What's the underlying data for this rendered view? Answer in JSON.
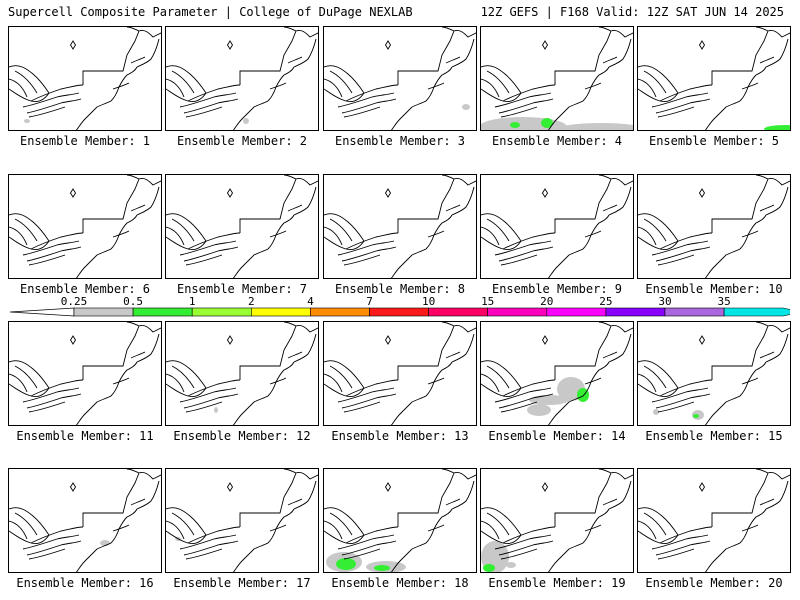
{
  "header": {
    "title_left": "Supercell Composite Parameter | College of DuPage NEXLAB",
    "title_right": "12Z GEFS | F168 Valid: 12Z SAT JUN 14 2025"
  },
  "legend": {
    "thresholds": [
      "0.25",
      "0.5",
      "1",
      "2",
      "4",
      "7",
      "10",
      "15",
      "20",
      "25",
      "30",
      "35"
    ],
    "colors": [
      "#c8c8c8",
      "#33ee33",
      "#99ff33",
      "#ffff00",
      "#ff8c00",
      "#ff1a1a",
      "#ff0066",
      "#ff00bb",
      "#ff00ff",
      "#8800ff",
      "#aa66dd",
      "#00e6e6"
    ]
  },
  "caption_prefix": "Ensemble Member: ",
  "members": [
    {
      "label": "Ensemble Member: 1",
      "blobs": [
        {
          "cx": 18,
          "cy": 94,
          "rx": 3,
          "ry": 2,
          "color": "gray"
        }
      ]
    },
    {
      "label": "Ensemble Member: 2",
      "blobs": [
        {
          "cx": 80,
          "cy": 94,
          "rx": 3,
          "ry": 3,
          "color": "gray"
        }
      ]
    },
    {
      "label": "Ensemble Member: 3",
      "blobs": [
        {
          "cx": 142,
          "cy": 80,
          "rx": 4,
          "ry": 3,
          "color": "gray"
        }
      ]
    },
    {
      "label": "Ensemble Member: 4",
      "blobs": [
        {
          "cx": 42,
          "cy": 100,
          "rx": 44,
          "ry": 10,
          "color": "gray"
        },
        {
          "cx": 120,
          "cy": 101,
          "rx": 40,
          "ry": 5,
          "color": "gray"
        },
        {
          "cx": 66,
          "cy": 96,
          "rx": 6,
          "ry": 5,
          "color": "green"
        },
        {
          "cx": 34,
          "cy": 98,
          "rx": 5,
          "ry": 3,
          "color": "green"
        }
      ]
    },
    {
      "label": "Ensemble Member: 5",
      "blobs": [
        {
          "cx": 148,
          "cy": 102,
          "rx": 22,
          "ry": 4,
          "color": "green"
        }
      ]
    },
    {
      "label": "Ensemble Member: 6",
      "blobs": []
    },
    {
      "label": "Ensemble Member: 7",
      "blobs": []
    },
    {
      "label": "Ensemble Member: 8",
      "blobs": []
    },
    {
      "label": "Ensemble Member: 9",
      "blobs": []
    },
    {
      "label": "Ensemble Member: 10",
      "blobs": []
    },
    {
      "label": "Ensemble Member: 11",
      "blobs": []
    },
    {
      "label": "Ensemble Member: 12",
      "blobs": [
        {
          "cx": 50,
          "cy": 88,
          "rx": 2,
          "ry": 3,
          "color": "gray"
        }
      ]
    },
    {
      "label": "Ensemble Member: 13",
      "blobs": []
    },
    {
      "label": "Ensemble Member: 14",
      "blobs": [
        {
          "cx": 90,
          "cy": 67,
          "rx": 14,
          "ry": 12,
          "color": "gray"
        },
        {
          "cx": 68,
          "cy": 78,
          "rx": 20,
          "ry": 5,
          "color": "gray"
        },
        {
          "cx": 58,
          "cy": 88,
          "rx": 12,
          "ry": 6,
          "color": "gray"
        },
        {
          "cx": 102,
          "cy": 73,
          "rx": 6,
          "ry": 7,
          "color": "green"
        }
      ]
    },
    {
      "label": "Ensemble Member: 15",
      "blobs": [
        {
          "cx": 60,
          "cy": 93,
          "rx": 6,
          "ry": 5,
          "color": "gray"
        },
        {
          "cx": 58,
          "cy": 94,
          "rx": 3,
          "ry": 2,
          "color": "green"
        },
        {
          "cx": 18,
          "cy": 90,
          "rx": 3,
          "ry": 3,
          "color": "gray"
        }
      ]
    },
    {
      "label": "Ensemble Member: 16",
      "blobs": [
        {
          "cx": 96,
          "cy": 74,
          "rx": 5,
          "ry": 3,
          "color": "gray"
        }
      ]
    },
    {
      "label": "Ensemble Member: 17",
      "blobs": [
        {
          "cx": 12,
          "cy": 70,
          "rx": 3,
          "ry": 2,
          "color": "gray"
        }
      ]
    },
    {
      "label": "Ensemble Member: 18",
      "blobs": [
        {
          "cx": 20,
          "cy": 93,
          "rx": 18,
          "ry": 10,
          "color": "gray"
        },
        {
          "cx": 62,
          "cy": 98,
          "rx": 20,
          "ry": 6,
          "color": "gray"
        },
        {
          "cx": 22,
          "cy": 95,
          "rx": 10,
          "ry": 6,
          "color": "green"
        },
        {
          "cx": 58,
          "cy": 99,
          "rx": 8,
          "ry": 3,
          "color": "green"
        }
      ]
    },
    {
      "label": "Ensemble Member: 19",
      "blobs": [
        {
          "cx": 14,
          "cy": 88,
          "rx": 14,
          "ry": 16,
          "color": "gray"
        },
        {
          "cx": 8,
          "cy": 99,
          "rx": 6,
          "ry": 4,
          "color": "green"
        },
        {
          "cx": 30,
          "cy": 96,
          "rx": 5,
          "ry": 3,
          "color": "gray"
        }
      ]
    },
    {
      "label": "Ensemble Member: 20",
      "blobs": []
    }
  ]
}
